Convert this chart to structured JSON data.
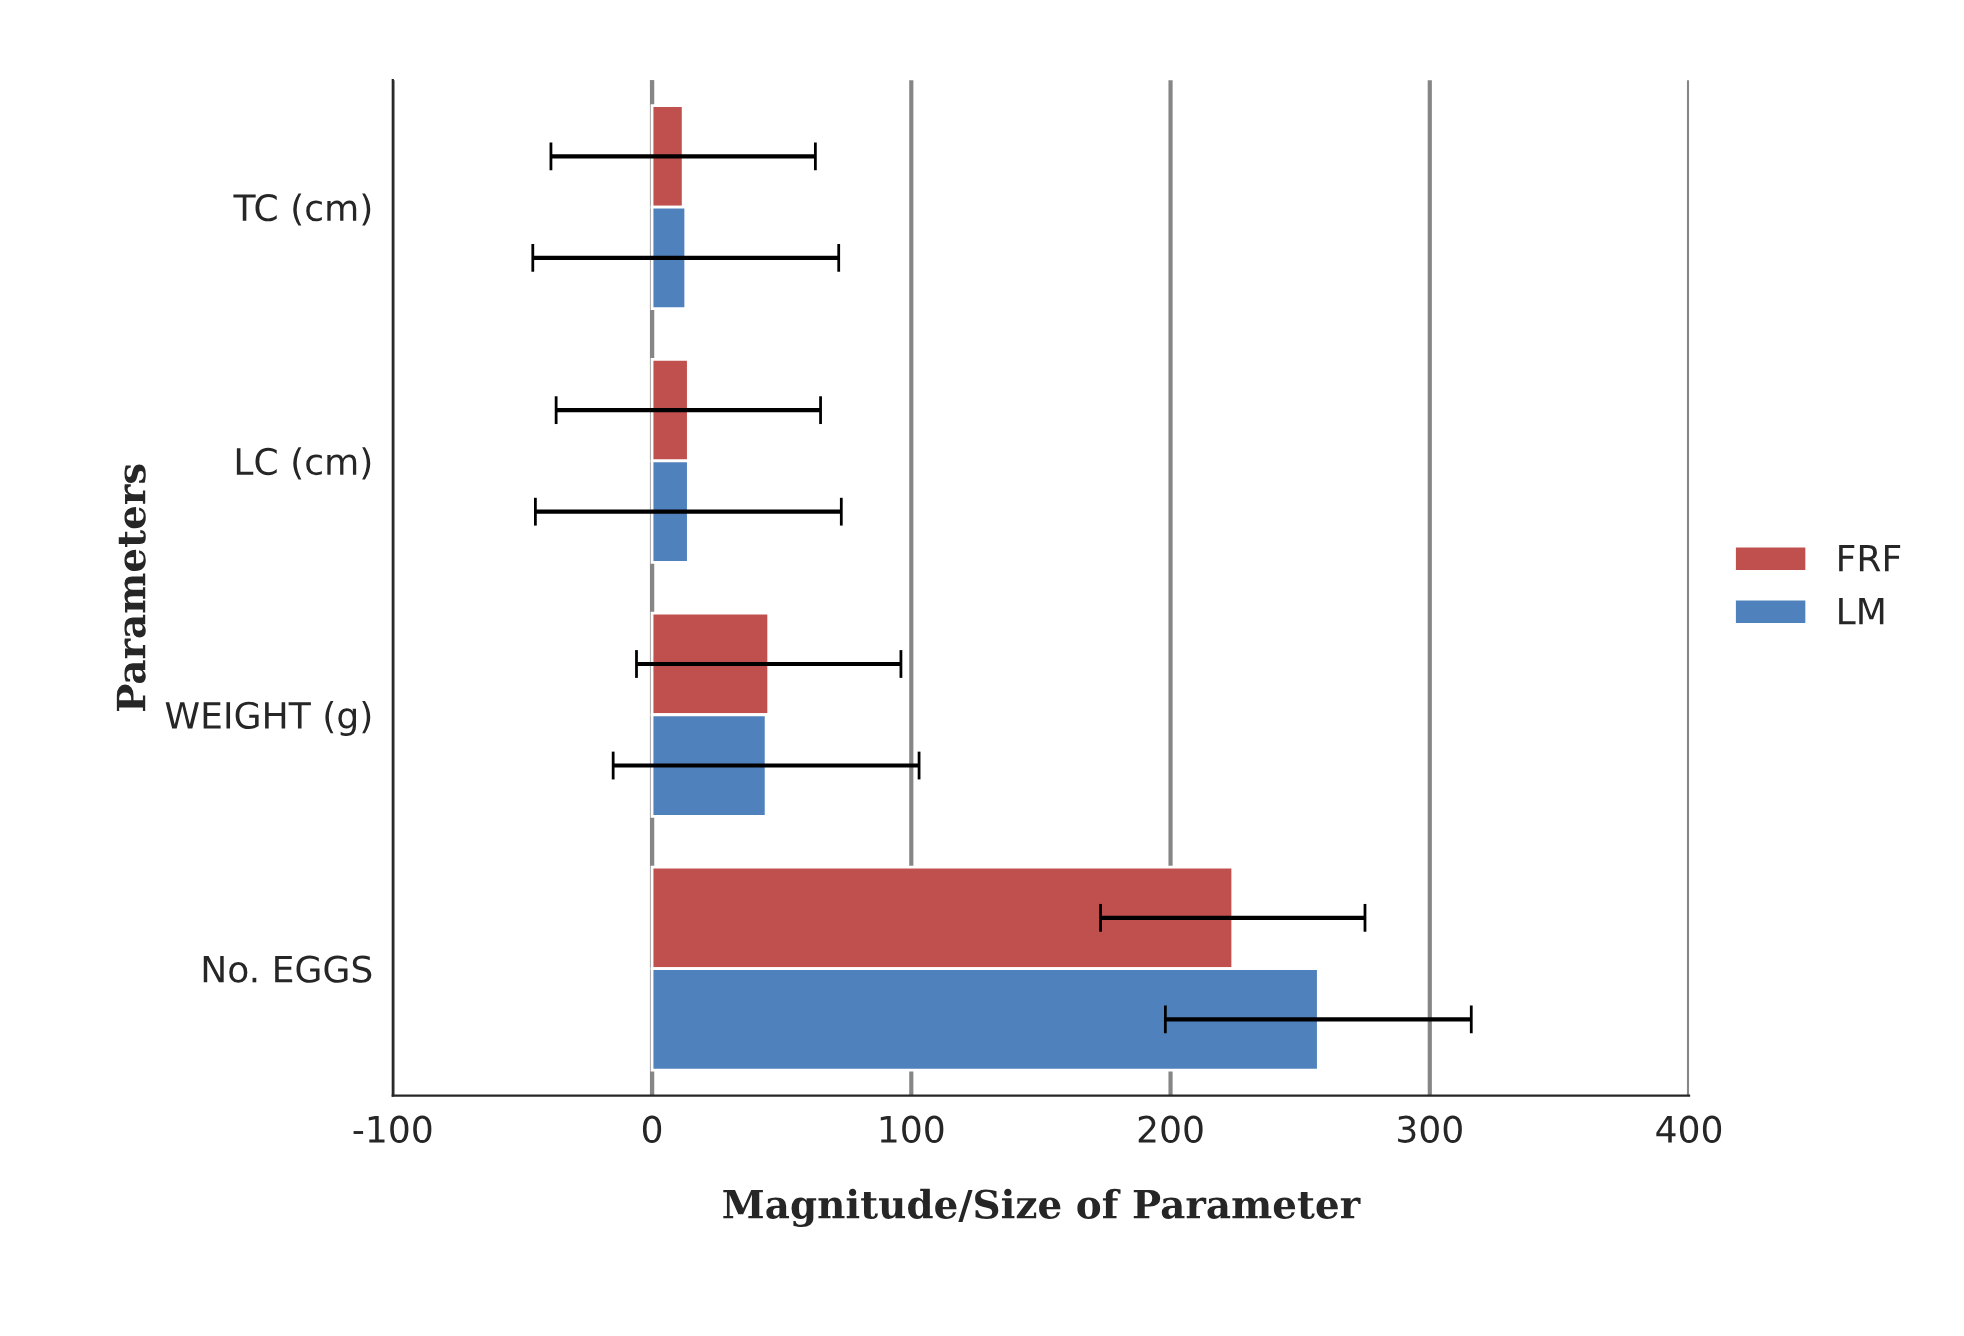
{
  "chart_data": {
    "type": "bar",
    "orientation": "horizontal",
    "xlabel": "Magnitude/Size of Parameter",
    "ylabel": "Parameters",
    "categories": [
      "TC (cm)",
      "LC (cm)",
      "WEIGHT (g)",
      "No. EGGS"
    ],
    "series": [
      {
        "name": "FRF",
        "color": "#c0504d",
        "values": [
          12,
          14,
          45,
          224
        ],
        "errors": [
          51,
          51,
          51,
          51
        ]
      },
      {
        "name": "LM",
        "color": "#4f81bd",
        "values": [
          13,
          14,
          44,
          257
        ],
        "errors": [
          59,
          59,
          59,
          59
        ]
      }
    ],
    "xlim": [
      -100,
      400
    ],
    "xticks": [
      -100,
      0,
      100,
      200,
      300,
      400
    ],
    "grid": "x",
    "legend": "right"
  }
}
